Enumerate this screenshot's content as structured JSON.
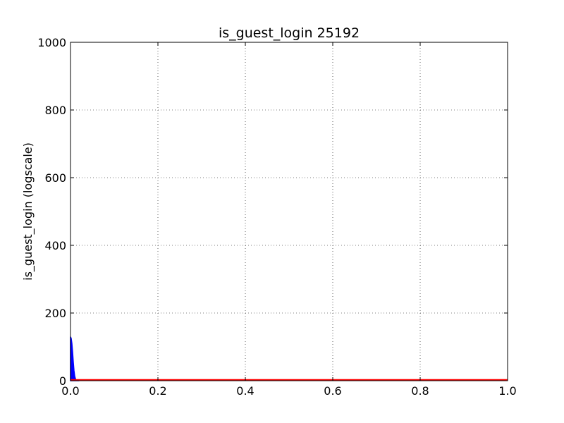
{
  "chart_data": {
    "type": "area",
    "title": "is_guest_login 25192",
    "xlabel": "",
    "ylabel": "is_guest_login (logscale)",
    "xlim": [
      0.0,
      1.0
    ],
    "ylim": [
      0,
      1000
    ],
    "x_ticks": [
      0.0,
      0.2,
      0.4,
      0.6,
      0.8,
      1.0
    ],
    "x_tick_labels": [
      "0.0",
      "0.2",
      "0.4",
      "0.6",
      "0.8",
      "1.0"
    ],
    "y_ticks": [
      0,
      200,
      400,
      600,
      800,
      1000
    ],
    "y_tick_labels": [
      "0",
      "200",
      "400",
      "600",
      "800",
      "1000"
    ],
    "grid": true,
    "series": [
      {
        "color": "#0000ff",
        "style": "filled",
        "x": [
          0.0,
          0.0016,
          0.0032,
          0.0048,
          0.0064,
          0.008,
          0.0096,
          0.0112,
          0.0128,
          0.02
        ],
        "y": [
          130,
          125,
          110,
          85,
          55,
          30,
          14,
          6,
          2,
          0
        ]
      },
      {
        "color": "#ff0000",
        "style": "line",
        "x": [
          0.0,
          1.0
        ],
        "y": [
          2,
          2
        ]
      }
    ]
  }
}
